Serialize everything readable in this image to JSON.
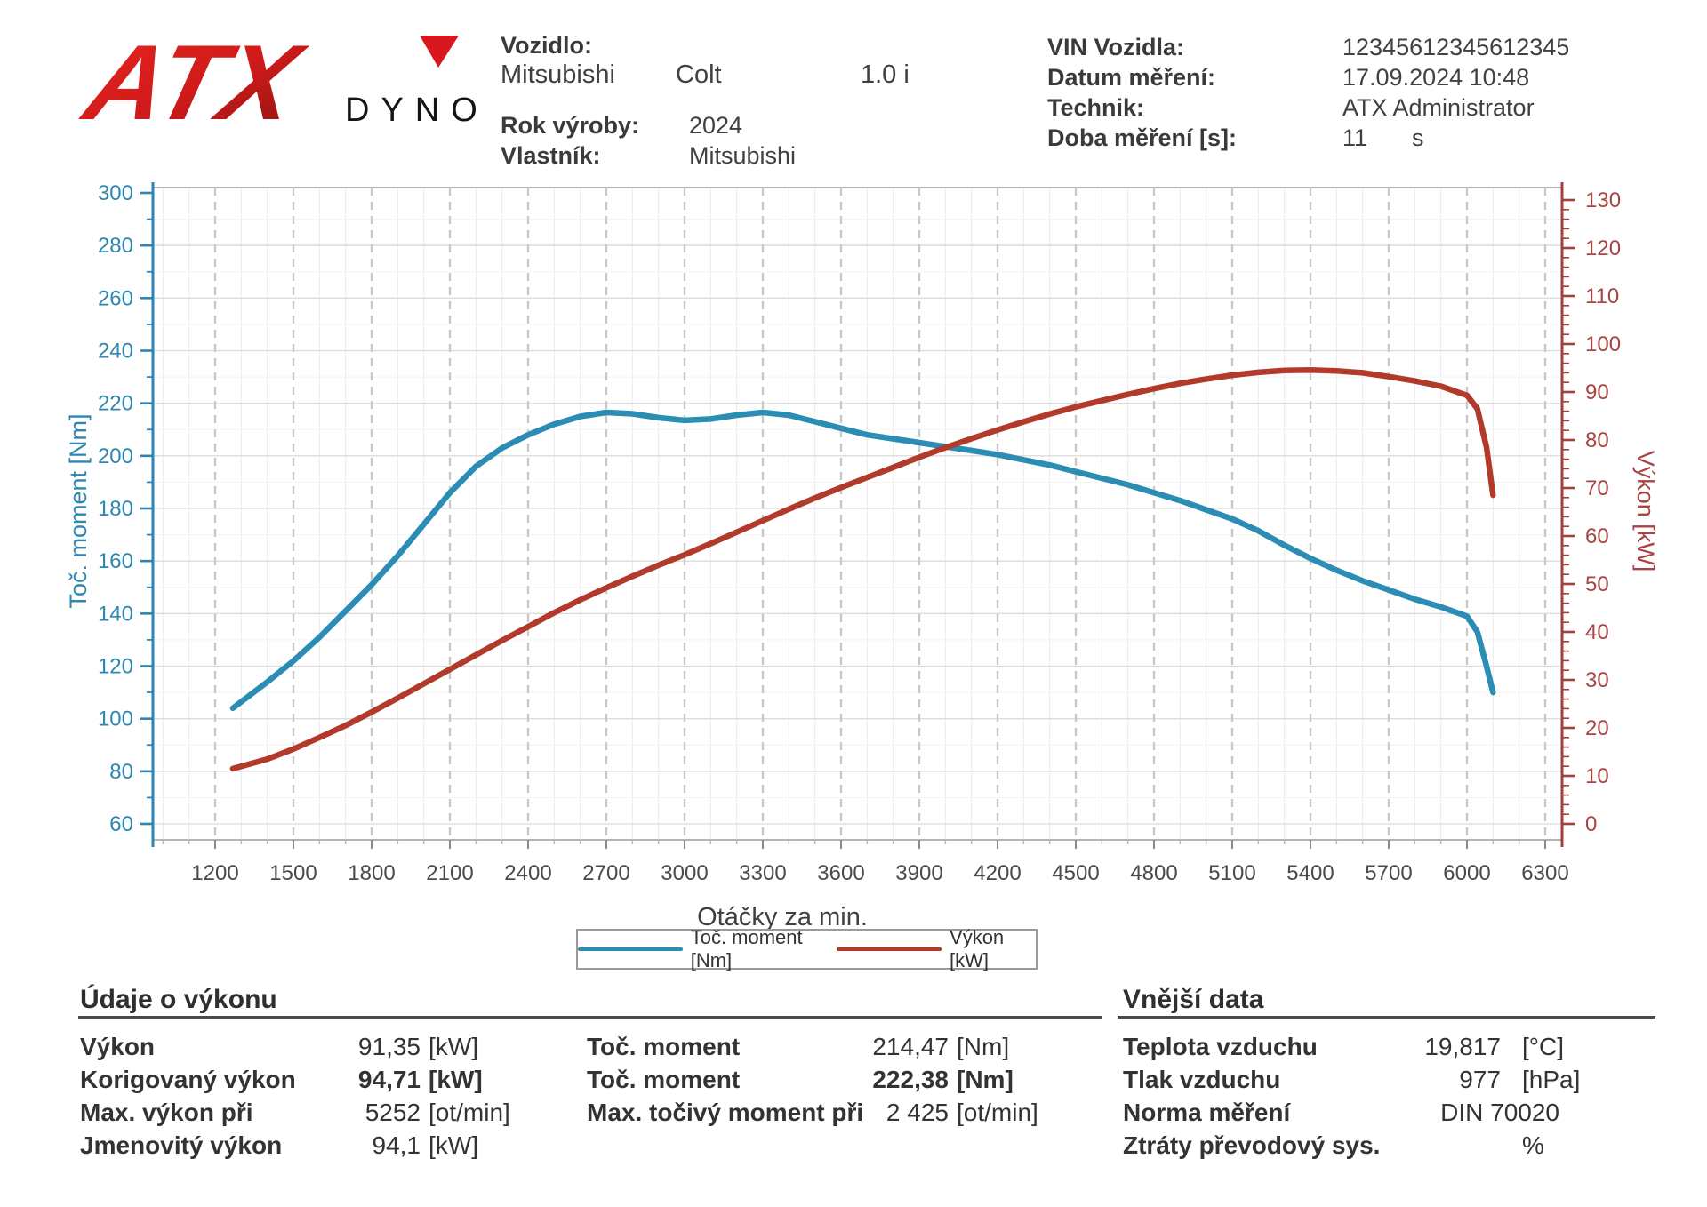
{
  "header": {
    "logo": {
      "brand": "ATX",
      "sub": "DYNO"
    },
    "vehicle": {
      "vozidlo_label": "Vozidlo:",
      "make": "Mitsubishi",
      "model": "Colt",
      "engine": "1.0 i",
      "rok_label": "Rok výroby:",
      "rok": "2024",
      "vlastnik_label": "Vlastník:",
      "vlastnik": "Mitsubishi"
    },
    "measurement": {
      "vin_label": "VIN Vozidla:",
      "vin": "12345612345612345",
      "datum_label": "Datum měření:",
      "datum": "17.09.2024 10:48",
      "technik_label": "Technik:",
      "technik": "ATX Administrator",
      "doba_label": "Doba měření [s]:",
      "doba": "11",
      "doba_unit": "s"
    }
  },
  "chart_data": {
    "type": "line",
    "xlabel": "Otáčky za min.",
    "ylabel_left": "Toč. moment [Nm]",
    "ylabel_right": "Výkon [kW]",
    "xlim": [
      975,
      6365
    ],
    "ylim_left": [
      60,
      300
    ],
    "ylim_right": [
      0,
      130
    ],
    "x_ticks": [
      1200,
      1500,
      1800,
      2100,
      2400,
      2700,
      3000,
      3300,
      3600,
      3900,
      4200,
      4500,
      4800,
      5100,
      5400,
      5700,
      6000,
      6300
    ],
    "left_ticks": [
      60,
      80,
      100,
      120,
      140,
      160,
      180,
      200,
      220,
      240,
      260,
      280,
      300
    ],
    "right_ticks": [
      0,
      10,
      20,
      30,
      40,
      50,
      60,
      70,
      80,
      90,
      100,
      110,
      120,
      130
    ],
    "grid": true,
    "legend_position": "bottom",
    "colors": {
      "torque": "#2b8cb4",
      "power": "#b23a2b",
      "left_axis": "#2e86ae",
      "right_axis": "#a0413a",
      "tick_text_left": "#2e87b0",
      "tick_text_right": "#a94442",
      "x_text": "#4a4a4a"
    },
    "series": [
      {
        "name": "Toč. moment [Nm]",
        "axis": "left",
        "color": "#2b8cb4",
        "x": [
          1268,
          1400,
          1500,
          1600,
          1700,
          1800,
          1900,
          2000,
          2100,
          2200,
          2300,
          2400,
          2500,
          2600,
          2700,
          2800,
          2900,
          3000,
          3100,
          3200,
          3300,
          3400,
          3500,
          3600,
          3700,
          3800,
          3900,
          4000,
          4100,
          4200,
          4300,
          4400,
          4500,
          4600,
          4700,
          4800,
          4900,
          5000,
          5100,
          5200,
          5300,
          5400,
          5500,
          5600,
          5700,
          5800,
          5900,
          6000,
          6040,
          6075,
          6100
        ],
        "y": [
          104,
          114,
          122,
          131,
          141,
          151,
          162,
          174,
          186,
          196,
          203,
          208,
          212,
          215,
          216.5,
          216,
          214.5,
          213.5,
          214,
          215.5,
          216.5,
          215.5,
          213,
          210.5,
          208,
          206.5,
          205,
          203.5,
          202,
          200.5,
          198.5,
          196.5,
          194,
          191.5,
          189,
          186,
          183,
          179.5,
          176,
          171.5,
          166,
          161,
          156.5,
          152.5,
          149,
          145.5,
          142.5,
          139,
          133,
          120,
          110
        ]
      },
      {
        "name": "Výkon [kW]",
        "axis": "right",
        "color": "#b23a2b",
        "x": [
          1268,
          1400,
          1500,
          1600,
          1700,
          1800,
          1900,
          2000,
          2100,
          2200,
          2300,
          2400,
          2500,
          2600,
          2700,
          2800,
          2900,
          3000,
          3100,
          3200,
          3300,
          3400,
          3500,
          3600,
          3700,
          3800,
          3900,
          4000,
          4100,
          4200,
          4300,
          4400,
          4500,
          4600,
          4700,
          4800,
          4900,
          5000,
          5100,
          5200,
          5300,
          5400,
          5500,
          5600,
          5700,
          5800,
          5900,
          6000,
          6040,
          6075,
          6100
        ],
        "y": [
          11.5,
          13.5,
          15.6,
          18,
          20.5,
          23.3,
          26.2,
          29.2,
          32.2,
          35.2,
          38.2,
          41.1,
          44,
          46.7,
          49.2,
          51.6,
          53.9,
          56.1,
          58.4,
          60.8,
          63.2,
          65.6,
          67.9,
          70.1,
          72.2,
          74.3,
          76.4,
          78.4,
          80.3,
          82.1,
          83.8,
          85.4,
          86.9,
          88.2,
          89.5,
          90.7,
          91.8,
          92.7,
          93.5,
          94.1,
          94.5,
          94.6,
          94.4,
          94,
          93.2,
          92.3,
          91.2,
          89.3,
          86.5,
          78.5,
          68.5
        ]
      }
    ]
  },
  "results": {
    "left_title": "Údaje o výkonu",
    "right_title": "Vnější data",
    "left_rows": [
      {
        "label": "Výkon",
        "value": "91,35",
        "unit": "[kW]",
        "bold": false
      },
      {
        "label": "Korigovaný výkon",
        "value": "94,71",
        "unit": "[kW]",
        "bold": true
      },
      {
        "label": "Max. výkon při",
        "value": "5252",
        "unit": "[ot/min]",
        "bold": false
      },
      {
        "label": "Jmenovitý výkon",
        "value": "94,1",
        "unit": "[kW]",
        "bold": false
      }
    ],
    "mid_rows": [
      {
        "label": "Toč. moment",
        "value": "214,47",
        "unit": "[Nm]",
        "bold": false
      },
      {
        "label": "Toč. moment",
        "value": "222,38",
        "unit": "[Nm]",
        "bold": true
      },
      {
        "label": "Max. točivý moment při",
        "value": "2 425",
        "unit": "[ot/min]",
        "bold": false
      }
    ],
    "right_rows": [
      {
        "label": "Teplota vzduchu",
        "value": "19,817",
        "unit": "[°C]",
        "bold": false
      },
      {
        "label": "Tlak vzduchu",
        "value": "977",
        "unit": "[hPa]",
        "bold": false
      },
      {
        "label": "Norma měření",
        "value": "DIN 70020",
        "unit": "",
        "bold": false,
        "wide": true
      },
      {
        "label": "Ztráty převodový sys.",
        "value": "",
        "unit": "%",
        "bold": false
      }
    ]
  }
}
